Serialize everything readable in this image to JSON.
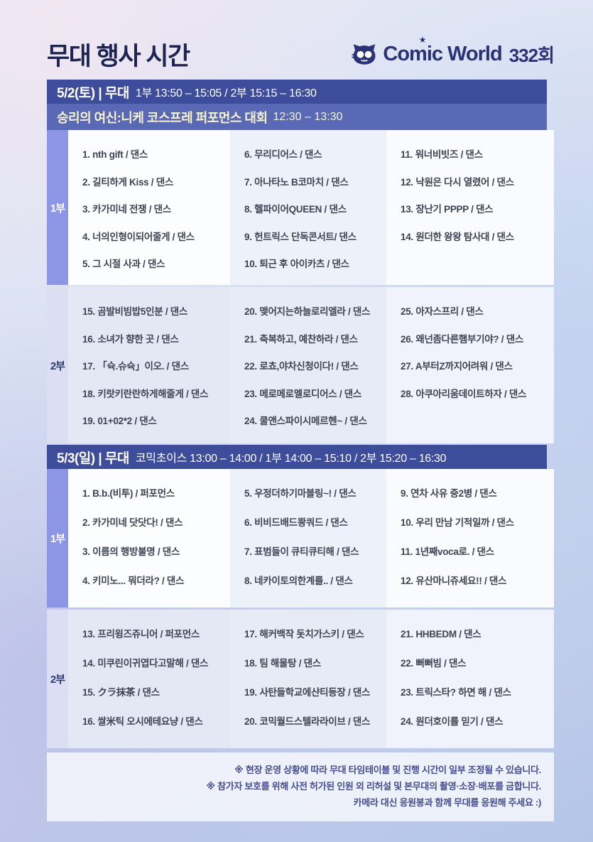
{
  "page": {
    "title": "무대 행사 시간"
  },
  "logo": {
    "brand": "Comic World",
    "star": "★",
    "edition": "332회",
    "cat_icon": "cat-icon"
  },
  "colors": {
    "header_bar": "#3e4d9b",
    "sub_bar": "#5a69b5",
    "sub_bar_text": "#f8f3cf",
    "brand_navy": "#2b3377",
    "part1_strip": "#8d96e4",
    "part2_strip": "#dcdff4"
  },
  "days": [
    {
      "header": {
        "date": "5/2(토) | 무대",
        "times": "1부 13:50 – 15:05 / 2부 15:15 – 16:30"
      },
      "subheader": {
        "title": "승리의 여신:니케 코스프레 퍼포먼스 대회",
        "times": "12:30 – 13:30"
      },
      "parts": [
        {
          "label": "1부",
          "columns": [
            [
              "1. nth gift / 댄스",
              "2. 길티하게 Kiss / 댄스",
              "3. 카가미네 전쟁 / 댄스",
              "4. 너의인형이되어줄게 / 댄스",
              "5. 그 시절 사과 / 댄스"
            ],
            [
              "6. 무리디어스 / 댄스",
              "7. 아나타노 B코마치 / 댄스",
              "8. 헬파이어QUEEN / 댄스",
              "9. 헌트릭스 단독콘서트/ 댄스",
              "10. 퇴근 후 아이카츠 / 댄스"
            ],
            [
              "11. 워너비빗즈 / 댄스",
              "12. 낙원은 다시 열렸어 / 댄스",
              "13. 장난기 PPPP / 댄스",
              "14. 원더한 왕왕 탐사대 / 댄스"
            ]
          ]
        },
        {
          "label": "2부",
          "columns": [
            [
              "15. 곰발비빔밥5인분 / 댄스",
              "16. 소녀가 향한 곳 / 댄스",
              "17. 「슉.슈슉」이오. / 댄스",
              "18. 키랏키란란하게해줄게 / 댄스",
              "19. 01+02*2 / 댄스"
            ],
            [
              "20. 맺어지는하늘로리엘라 / 댄스",
              "21. 축복하고, 예찬하라 / 댄스",
              "22. 로쵸,야차신청이다! / 댄스",
              "23. 메로메로멜로디어스 / 댄스",
              "24. 쿨앤스파이시메르헨~ / 댄스"
            ],
            [
              "25. 아자스프리 / 댄스",
              "26. 왜넌좀다른햄부기야? / 댄스",
              "27. A부터Z까지어려워 / 댄스",
              "28. 아쿠아리움데이트하자 / 댄스"
            ]
          ]
        }
      ]
    },
    {
      "header": {
        "date": "5/3(일) | 무대",
        "times": "코믹초이스 13:00 – 14:00 / 1부 14:00 – 15:10 / 2부 15:20 – 16:30"
      },
      "subheader": null,
      "parts": [
        {
          "label": "1부",
          "columns": [
            [
              "1. B.b.(비투) / 퍼포먼스",
              "2. 카가미네 닷닷다! / 댄스",
              "3. 이름의 행방불명 / 댄스",
              "4. 키미노... 뭐더라? / 댄스"
            ],
            [
              "5. 우정더하기마블링~! / 댄스",
              "6. 비비드배드쾅쿼드 / 댄스",
              "7. 표범들이 큐티큐티해 / 댄스",
              "8. 네카이토의한계를.. / 댄스"
            ],
            [
              "9. 연차 사유 중2병 / 댄스",
              "10. 우리 만남 기적일까 / 댄스",
              "11. 1년째voca로. / 댄스",
              "12. 유산마니쥬세요!! / 댄스"
            ]
          ]
        },
        {
          "label": "2부",
          "columns": [
            [
              "13. 프리윙즈쥬니어 / 퍼포먼스",
              "14. 미쿠린이귀엽다고말해 / 댄스",
              "15. クラ抹茶 / 댄스",
              "16. 쌀米틱 오시에테요냥 / 댄스"
            ],
            [
              "17. 해커백작 돗치가스키 / 댄스",
              "18. 팀 해물탕 / 댄스",
              "19. 사탄들학교에샨티등장 / 댄스",
              "20. 코믹월드스텔라라이브 / 댄스"
            ],
            [
              "21. HHBEDM / 댄스",
              "22. 뻐뻐빔 / 댄스",
              "23. 트릭스타? 하면 해 / 댄스",
              "24. 원더호이를 믿기 / 댄스"
            ]
          ]
        }
      ]
    }
  ],
  "footer": {
    "lines": [
      "※ 현장 운영 상황에 따라 무대 타임테이블 및 진행 시간이 일부 조정될 수 있습니다.",
      "※ 참가자 보호를 위해 사전 허가된 인원 외 리허설 및 본무대의 촬영·소장·배포를 금합니다.",
      "카메라 대신 응원봉과 함께 무대를 응원해 주세요 :)"
    ]
  }
}
